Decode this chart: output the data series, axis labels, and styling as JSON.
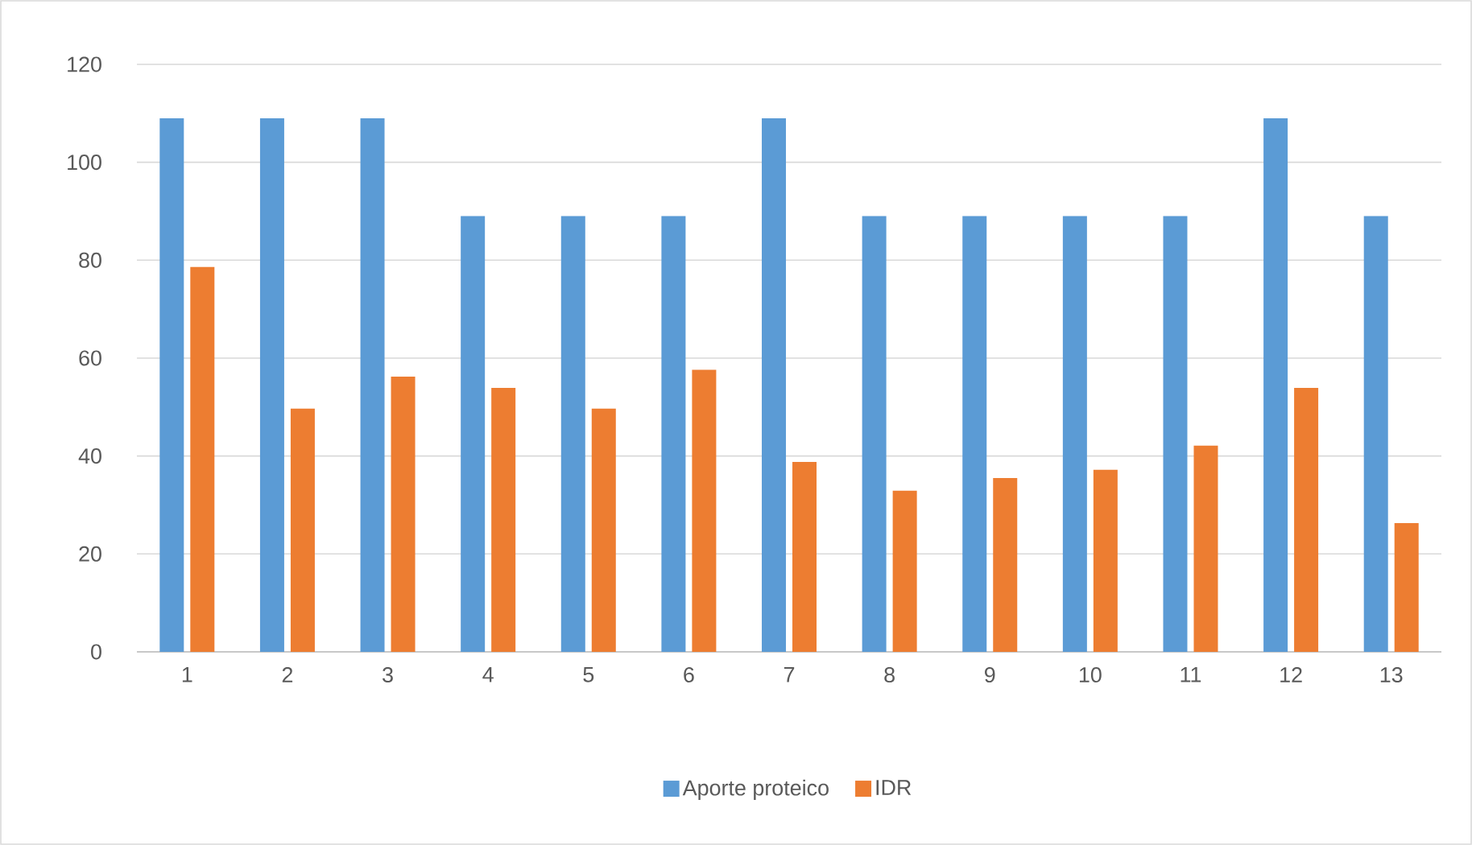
{
  "chart_data": {
    "type": "bar",
    "categories": [
      "1",
      "2",
      "3",
      "4",
      "5",
      "6",
      "7",
      "8",
      "9",
      "10",
      "11",
      "12",
      "13"
    ],
    "series": [
      {
        "name": "Aporte proteico",
        "color": "#5b9bd5",
        "values": [
          109,
          109,
          109,
          89,
          89,
          89,
          109,
          89,
          89,
          89,
          89,
          109,
          89
        ]
      },
      {
        "name": "IDR",
        "color": "#ed7d31",
        "values": [
          78.6,
          49.7,
          56.2,
          53.9,
          49.7,
          57.6,
          38.8,
          32.9,
          35.5,
          37.2,
          42.1,
          53.9,
          26.3
        ]
      }
    ],
    "ylim": [
      0,
      120
    ],
    "yticks": [
      0,
      20,
      40,
      60,
      80,
      100,
      120
    ],
    "grid": "y",
    "legend": "bottom"
  }
}
